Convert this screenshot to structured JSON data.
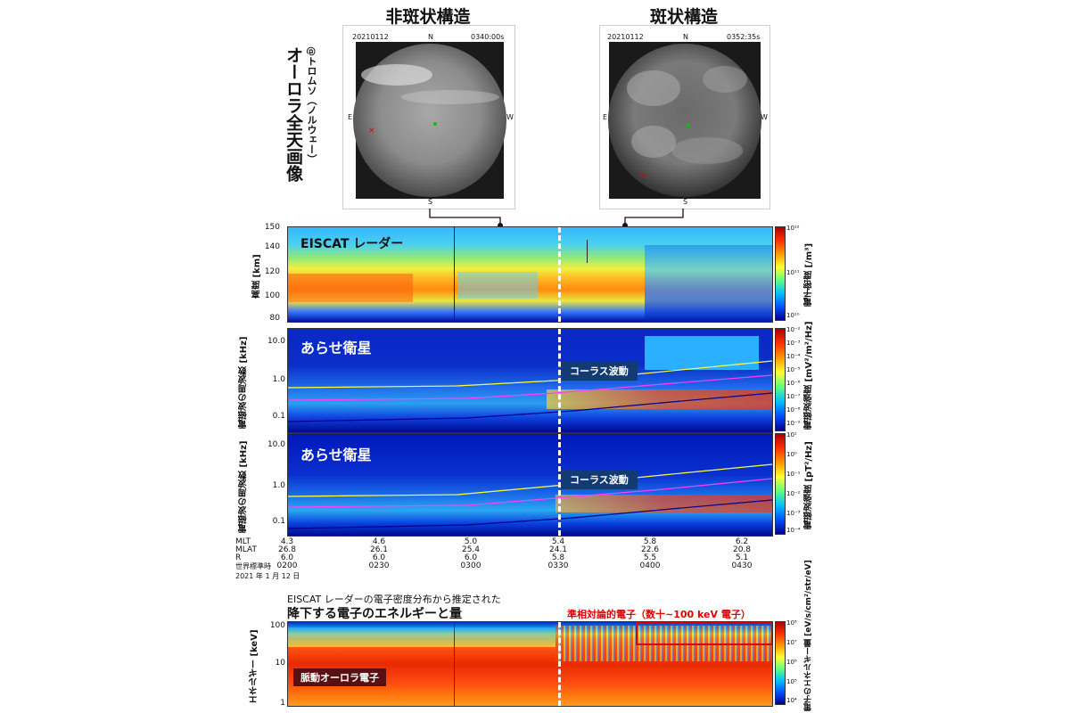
{
  "headers": {
    "left": "非斑状構造",
    "right": "斑状構造"
  },
  "allsky": {
    "title": "オーロラ全天画像",
    "subtitle": "@トロムソ（ノルウェー）",
    "left": {
      "date": "20210112",
      "time": "0340:00s",
      "n": "N",
      "s": "S",
      "e": "E",
      "w": "W"
    },
    "right": {
      "date": "20210112",
      "time": "0352:35s",
      "n": "N",
      "s": "S",
      "e": "E",
      "w": "W"
    }
  },
  "chart_data": [
    {
      "type": "heatmap",
      "title": "EISCAT レーダー",
      "ylabel": "高度 [km]",
      "yticks": [
        "150",
        "140",
        "120",
        "100",
        "80"
      ],
      "ylim": [
        80,
        150
      ],
      "colorbar_label": "電子密度 [/m³]",
      "colorbar_ticks": [
        "10¹²",
        "10¹¹",
        "10¹⁰"
      ]
    },
    {
      "type": "heatmap",
      "title": "あらせ衛星",
      "annotation": "コーラス波動",
      "ylabel": "電磁波の周波数 [kHz]",
      "yticks": [
        "10.0",
        "1.0",
        "0.1"
      ],
      "colorbar_label": "電磁波強度 [mV²/m²/Hz]",
      "colorbar_ticks": [
        "10⁻²",
        "10⁻³",
        "10⁻⁴",
        "10⁻⁵",
        "10⁻⁶",
        "10⁻⁷",
        "10⁻⁸",
        "10⁻⁹"
      ]
    },
    {
      "type": "heatmap",
      "title": "あらせ衛星",
      "annotation": "コーラス波動",
      "ylabel": "電磁波の周波数 [kHz]",
      "yticks": [
        "10.0",
        "1.0",
        "0.1"
      ],
      "colorbar_label": "電磁波強度 [pT²/Hz]",
      "colorbar_ticks": [
        "10¹",
        "10⁰",
        "10⁻¹",
        "10⁻²",
        "10⁻³",
        "10⁻⁴"
      ]
    },
    {
      "type": "heatmap",
      "ylabel": "エネルギー [keV]",
      "yticks": [
        "100",
        "10",
        "1"
      ],
      "colorbar_label": "電子のエネルギー量 [eV/s/cm²/str/eV]",
      "colorbar_ticks": [
        "10⁸",
        "10⁷",
        "10⁶",
        "10⁵",
        "10⁴"
      ],
      "annotations": [
        "準相対論的電子（数十~100 keV 電子）",
        "脈動オーロラ電子"
      ]
    }
  ],
  "xaxis": {
    "row_labels": [
      "MLT",
      "MLAT",
      "R",
      "世界標準時"
    ],
    "columns": [
      {
        "mlt": "4.3",
        "mlat": "26.8",
        "r": "6.0",
        "ut": "0200"
      },
      {
        "mlt": "4.6",
        "mlat": "26.1",
        "r": "6.0",
        "ut": "0230"
      },
      {
        "mlt": "5.0",
        "mlat": "25.4",
        "r": "6.0",
        "ut": "0300"
      },
      {
        "mlt": "5.4",
        "mlat": "24.1",
        "r": "5.8",
        "ut": "0330"
      },
      {
        "mlt": "5.8",
        "mlat": "22.6",
        "r": "5.5",
        "ut": "0400"
      },
      {
        "mlt": "6.2",
        "mlat": "20.8",
        "r": "5.1",
        "ut": "0430"
      }
    ],
    "date": "2021 年 1 月 12 日"
  },
  "energy_caption": {
    "line1": "EISCAT レーダーの電子密度分布から推定された",
    "line2": "降下する電子のエネルギーと量"
  }
}
